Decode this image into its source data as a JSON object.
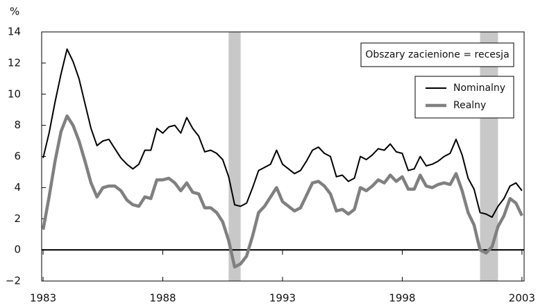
{
  "chart_data": {
    "type": "line",
    "y_unit_label": "%",
    "annotation": "Obszary zacienione = recesja",
    "shaded": [
      [
        1990.75,
        1991.25
      ],
      [
        2001.25,
        2002.0
      ]
    ],
    "shade_color": "#c8c8c8",
    "xlim": [
      1982.94,
      2003.09
    ],
    "xticks": [
      1983,
      1988,
      1993,
      1998,
      2003
    ],
    "ylim": [
      -2,
      14
    ],
    "yticks": [
      {
        "value": -2,
        "label": "−2"
      },
      0,
      2,
      4,
      6,
      8,
      10,
      12,
      14
    ],
    "zero_line": true,
    "legend": "top-right",
    "x": [
      1983,
      1983.25,
      1983.5,
      1983.75,
      1984,
      1984.25,
      1984.5,
      1984.75,
      1985,
      1985.25,
      1985.5,
      1985.75,
      1986,
      1986.25,
      1986.5,
      1986.75,
      1987,
      1987.25,
      1987.5,
      1987.75,
      1988,
      1988.25,
      1988.5,
      1988.75,
      1989,
      1989.25,
      1989.5,
      1989.75,
      1990,
      1990.25,
      1990.5,
      1990.75,
      1991,
      1991.25,
      1991.5,
      1991.75,
      1992,
      1992.25,
      1992.5,
      1992.75,
      1993,
      1993.25,
      1993.5,
      1993.75,
      1994,
      1994.25,
      1994.5,
      1994.75,
      1995,
      1995.25,
      1995.5,
      1995.75,
      1996,
      1996.25,
      1996.5,
      1996.75,
      1997,
      1997.25,
      1997.5,
      1997.75,
      1998,
      1998.25,
      1998.5,
      1998.75,
      1999,
      1999.25,
      1999.5,
      1999.75,
      2000,
      2000.25,
      2000.5,
      2000.75,
      2001,
      2001.25,
      2001.5,
      2001.75,
      2002,
      2002.25,
      2002.5,
      2002.75,
      2003
    ],
    "series": [
      {
        "name": "Nominalny",
        "color": "#000000",
        "width": 2,
        "values": [
          5.9,
          7.5,
          9.5,
          11.3,
          12.9,
          12.1,
          11.0,
          9.4,
          7.8,
          6.7,
          7.0,
          7.1,
          6.5,
          5.9,
          5.5,
          5.2,
          5.5,
          6.4,
          6.4,
          7.8,
          7.5,
          7.9,
          8.0,
          7.5,
          8.5,
          7.8,
          7.3,
          6.3,
          6.4,
          6.2,
          5.8,
          4.7,
          2.9,
          2.8,
          3.0,
          4.0,
          5.1,
          5.3,
          5.5,
          6.4,
          5.5,
          5.2,
          4.9,
          5.1,
          5.7,
          6.4,
          6.6,
          6.2,
          6.0,
          4.7,
          4.8,
          4.4,
          4.6,
          6.0,
          5.8,
          6.1,
          6.5,
          6.4,
          6.8,
          6.3,
          6.2,
          5.1,
          5.2,
          6.0,
          5.4,
          5.5,
          5.7,
          6.0,
          6.2,
          7.1,
          6.1,
          4.6,
          3.9,
          2.4,
          2.3,
          2.1,
          2.8,
          3.3,
          4.1,
          4.3,
          3.8
        ]
      },
      {
        "name": "Realny",
        "color": "#808080",
        "width": 4.5,
        "values": [
          1.3,
          3.4,
          5.7,
          7.6,
          8.6,
          8.0,
          7.0,
          5.7,
          4.3,
          3.4,
          4.0,
          4.1,
          4.1,
          3.8,
          3.2,
          2.9,
          2.8,
          3.4,
          3.3,
          4.5,
          4.5,
          4.6,
          4.3,
          3.8,
          4.3,
          3.7,
          3.6,
          2.7,
          2.7,
          2.4,
          1.8,
          0.6,
          -1.1,
          -0.9,
          -0.4,
          0.9,
          2.4,
          2.8,
          3.4,
          4.0,
          3.1,
          2.8,
          2.5,
          2.7,
          3.5,
          4.3,
          4.4,
          4.1,
          3.6,
          2.5,
          2.6,
          2.3,
          2.6,
          4.0,
          3.8,
          4.1,
          4.5,
          4.3,
          4.8,
          4.4,
          4.7,
          3.9,
          3.9,
          4.8,
          4.1,
          4.0,
          4.2,
          4.3,
          4.2,
          4.9,
          3.8,
          2.4,
          1.6,
          0.0,
          -0.2,
          0.2,
          1.5,
          2.2,
          3.3,
          3.0,
          2.2
        ]
      }
    ]
  }
}
